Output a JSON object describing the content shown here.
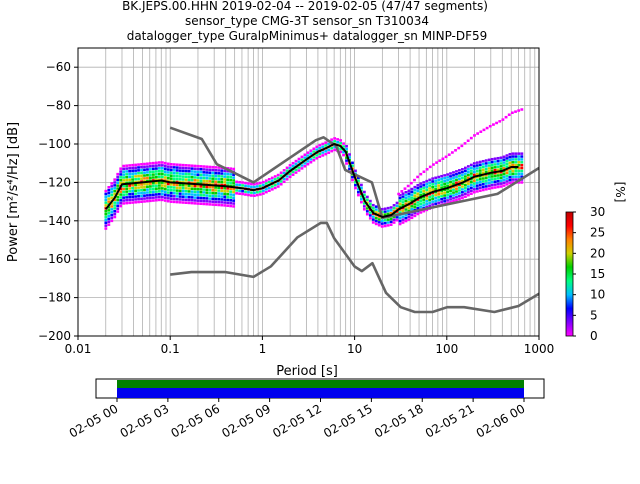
{
  "title_lines": [
    "BK.JEPS.00.HHN   2019-02-04 -- 2019-02-05  (47/47 segments)",
    "sensor_type CMG-3T sensor_sn T310034",
    "datalogger_type GuralpMinimus+ datalogger_sn MINP-DF59"
  ],
  "colors": {
    "grid": "#b0b0b0",
    "noise_models": "#666666",
    "mode_line": "#000000",
    "coverage_top": "#008000",
    "coverage_bottom": "#0000ee"
  },
  "chart_data": {
    "type": "heatmap",
    "subtype": "probabilistic power spectral density",
    "xlabel": "Period [s]",
    "ylabel": "Power [m²/s⁴/Hz] [dB]",
    "xscale": "log",
    "xlim": [
      0.01,
      1000
    ],
    "ylim": [
      -200,
      -50
    ],
    "x_ticks": [
      {
        "value": 0.01,
        "label": "0.01"
      },
      {
        "value": 0.1,
        "label": "0.1"
      },
      {
        "value": 1,
        "label": "1"
      },
      {
        "value": 10,
        "label": "10"
      },
      {
        "value": 100,
        "label": "100"
      },
      {
        "value": 1000,
        "label": "1000"
      }
    ],
    "y_ticks": [
      -60,
      -80,
      -100,
      -120,
      -140,
      -160,
      -180,
      -200
    ],
    "grid": true,
    "colorbar": {
      "label": "[%]",
      "min": 0,
      "max": 30,
      "ticks": [
        0,
        5,
        10,
        15,
        20,
        25,
        30
      ],
      "colormap": [
        "#ff00ff",
        "#8000ff",
        "#0000ff",
        "#00bfff",
        "#00ff80",
        "#00d000",
        "#d0d000",
        "#ff8000",
        "#ff0000",
        "#c00000"
      ]
    },
    "high_noise_model": {
      "period": [
        0.1,
        0.22,
        0.32,
        0.8,
        3.8,
        4.6,
        6.3,
        7.9,
        15.4,
        20,
        354.8,
        1000
      ],
      "power": [
        -91.5,
        -97.4,
        -110.5,
        -120,
        -98,
        -96.5,
        -101,
        -113.5,
        -120,
        -138.5,
        -126,
        -112.5
      ]
    },
    "low_noise_model": {
      "period": [
        0.1,
        0.17,
        0.4,
        0.8,
        1.24,
        2.4,
        4.3,
        5,
        6,
        10,
        12,
        15.6,
        21.9,
        31.6,
        45,
        70,
        101,
        154,
        328,
        600,
        1000
      ],
      "power": [
        -168,
        -166.7,
        -166.7,
        -169.2,
        -163.7,
        -148.6,
        -141.1,
        -141.1,
        -149,
        -163.8,
        -166.2,
        -162.1,
        -177.5,
        -185,
        -187.5,
        -187.5,
        -185,
        -185,
        -187.5,
        -184.4,
        -178
      ]
    },
    "mode": {
      "period": [
        0.02,
        0.025,
        0.03,
        0.05,
        0.08,
        0.1,
        0.2,
        0.4,
        0.6,
        0.8,
        1,
        1.5,
        2,
        3,
        4,
        5,
        6,
        7,
        8,
        10,
        13,
        16,
        20,
        25,
        30,
        40,
        50,
        70,
        100,
        150,
        200,
        300,
        400,
        500,
        600
      ],
      "power": [
        -134,
        -128,
        -121,
        -120,
        -119,
        -120,
        -121,
        -122,
        -123,
        -124,
        -123,
        -119,
        -114,
        -108,
        -104,
        -102,
        -100,
        -101,
        -104,
        -117,
        -130,
        -136,
        -138,
        -137,
        -134,
        -131,
        -128,
        -125,
        -123,
        -120,
        -117,
        -115,
        -114,
        -112,
        -112
      ]
    },
    "coverage": {
      "start_label": "02-05 00",
      "end_label": "02-06 00",
      "tick_labels": [
        "02-05 00",
        "02-05 03",
        "02-05 06",
        "02-05 09",
        "02-05 12",
        "02-05 15",
        "02-05 18",
        "02-05 21",
        "02-06 00"
      ]
    }
  }
}
